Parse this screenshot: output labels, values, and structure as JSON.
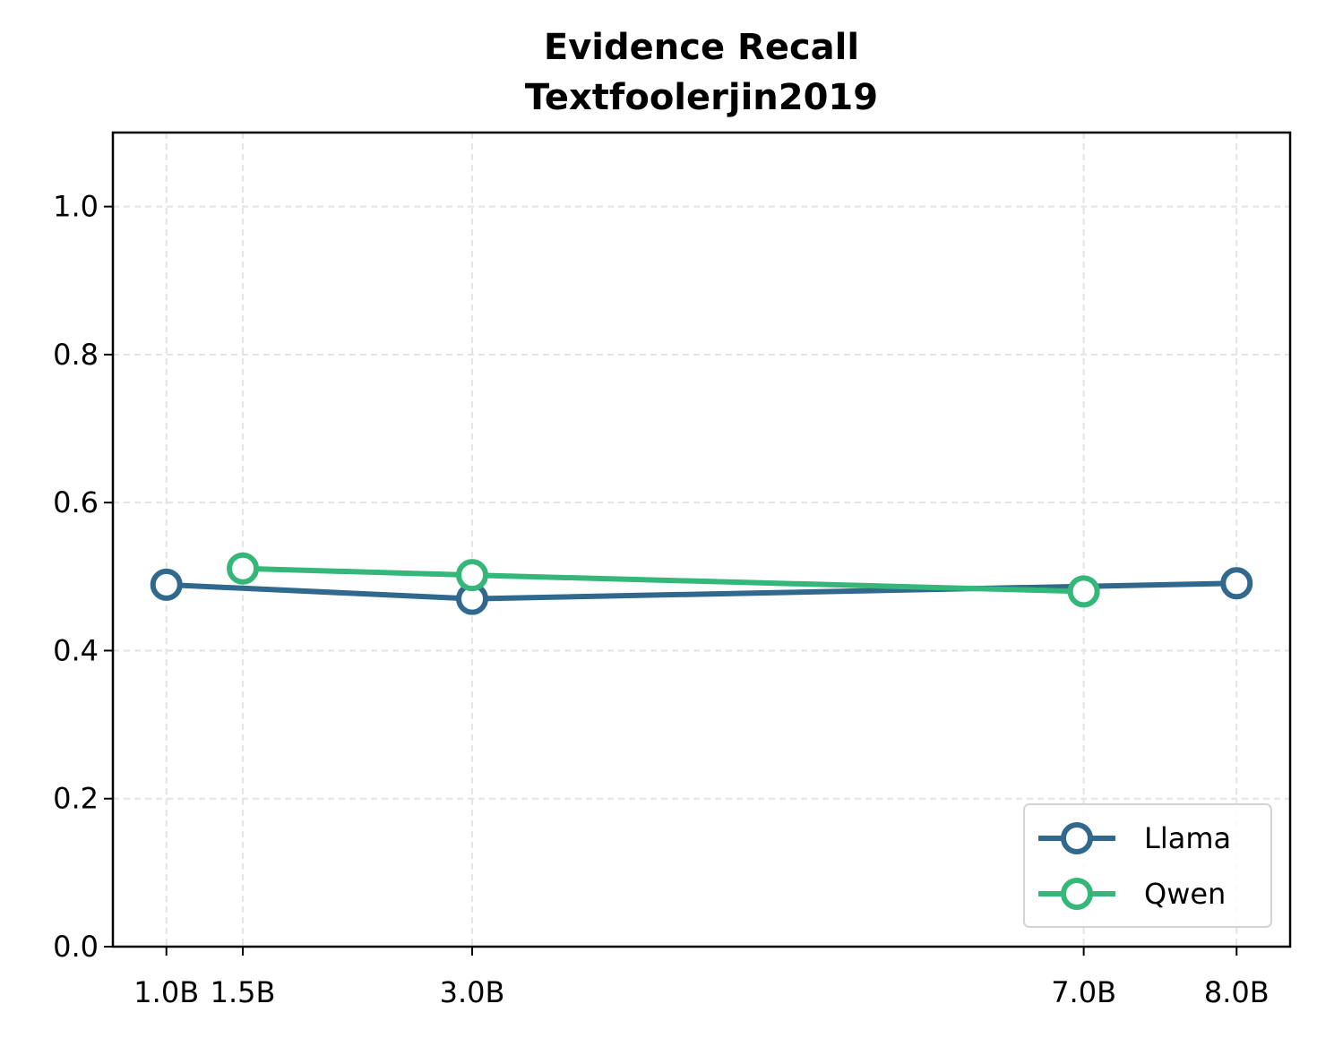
{
  "chart_data": {
    "type": "line",
    "title": "Evidence Recall",
    "subtitle": "Textfoolerjin2019",
    "xlabel": "",
    "ylabel": "",
    "x_ticks": [
      1.0,
      1.5,
      3.0,
      7.0,
      8.0
    ],
    "x_tick_labels": [
      "1.0B",
      "1.5B",
      "3.0B",
      "7.0B",
      "8.0B"
    ],
    "xlim": [
      0.65,
      8.35
    ],
    "ylim": [
      0.0,
      1.1
    ],
    "y_ticks": [
      0.0,
      0.2,
      0.4,
      0.6,
      0.8,
      1.0
    ],
    "y_tick_labels": [
      "0.0",
      "0.2",
      "0.4",
      "0.6",
      "0.8",
      "1.0"
    ],
    "grid": true,
    "legend_position": "lower-right",
    "series": [
      {
        "name": "Llama",
        "color": "#31688e",
        "x": [
          1.0,
          3.0,
          8.0
        ],
        "values": [
          0.489,
          0.47,
          0.491
        ]
      },
      {
        "name": "Qwen",
        "color": "#35b779",
        "x": [
          1.5,
          3.0,
          7.0
        ],
        "values": [
          0.511,
          0.502,
          0.48
        ]
      }
    ]
  }
}
